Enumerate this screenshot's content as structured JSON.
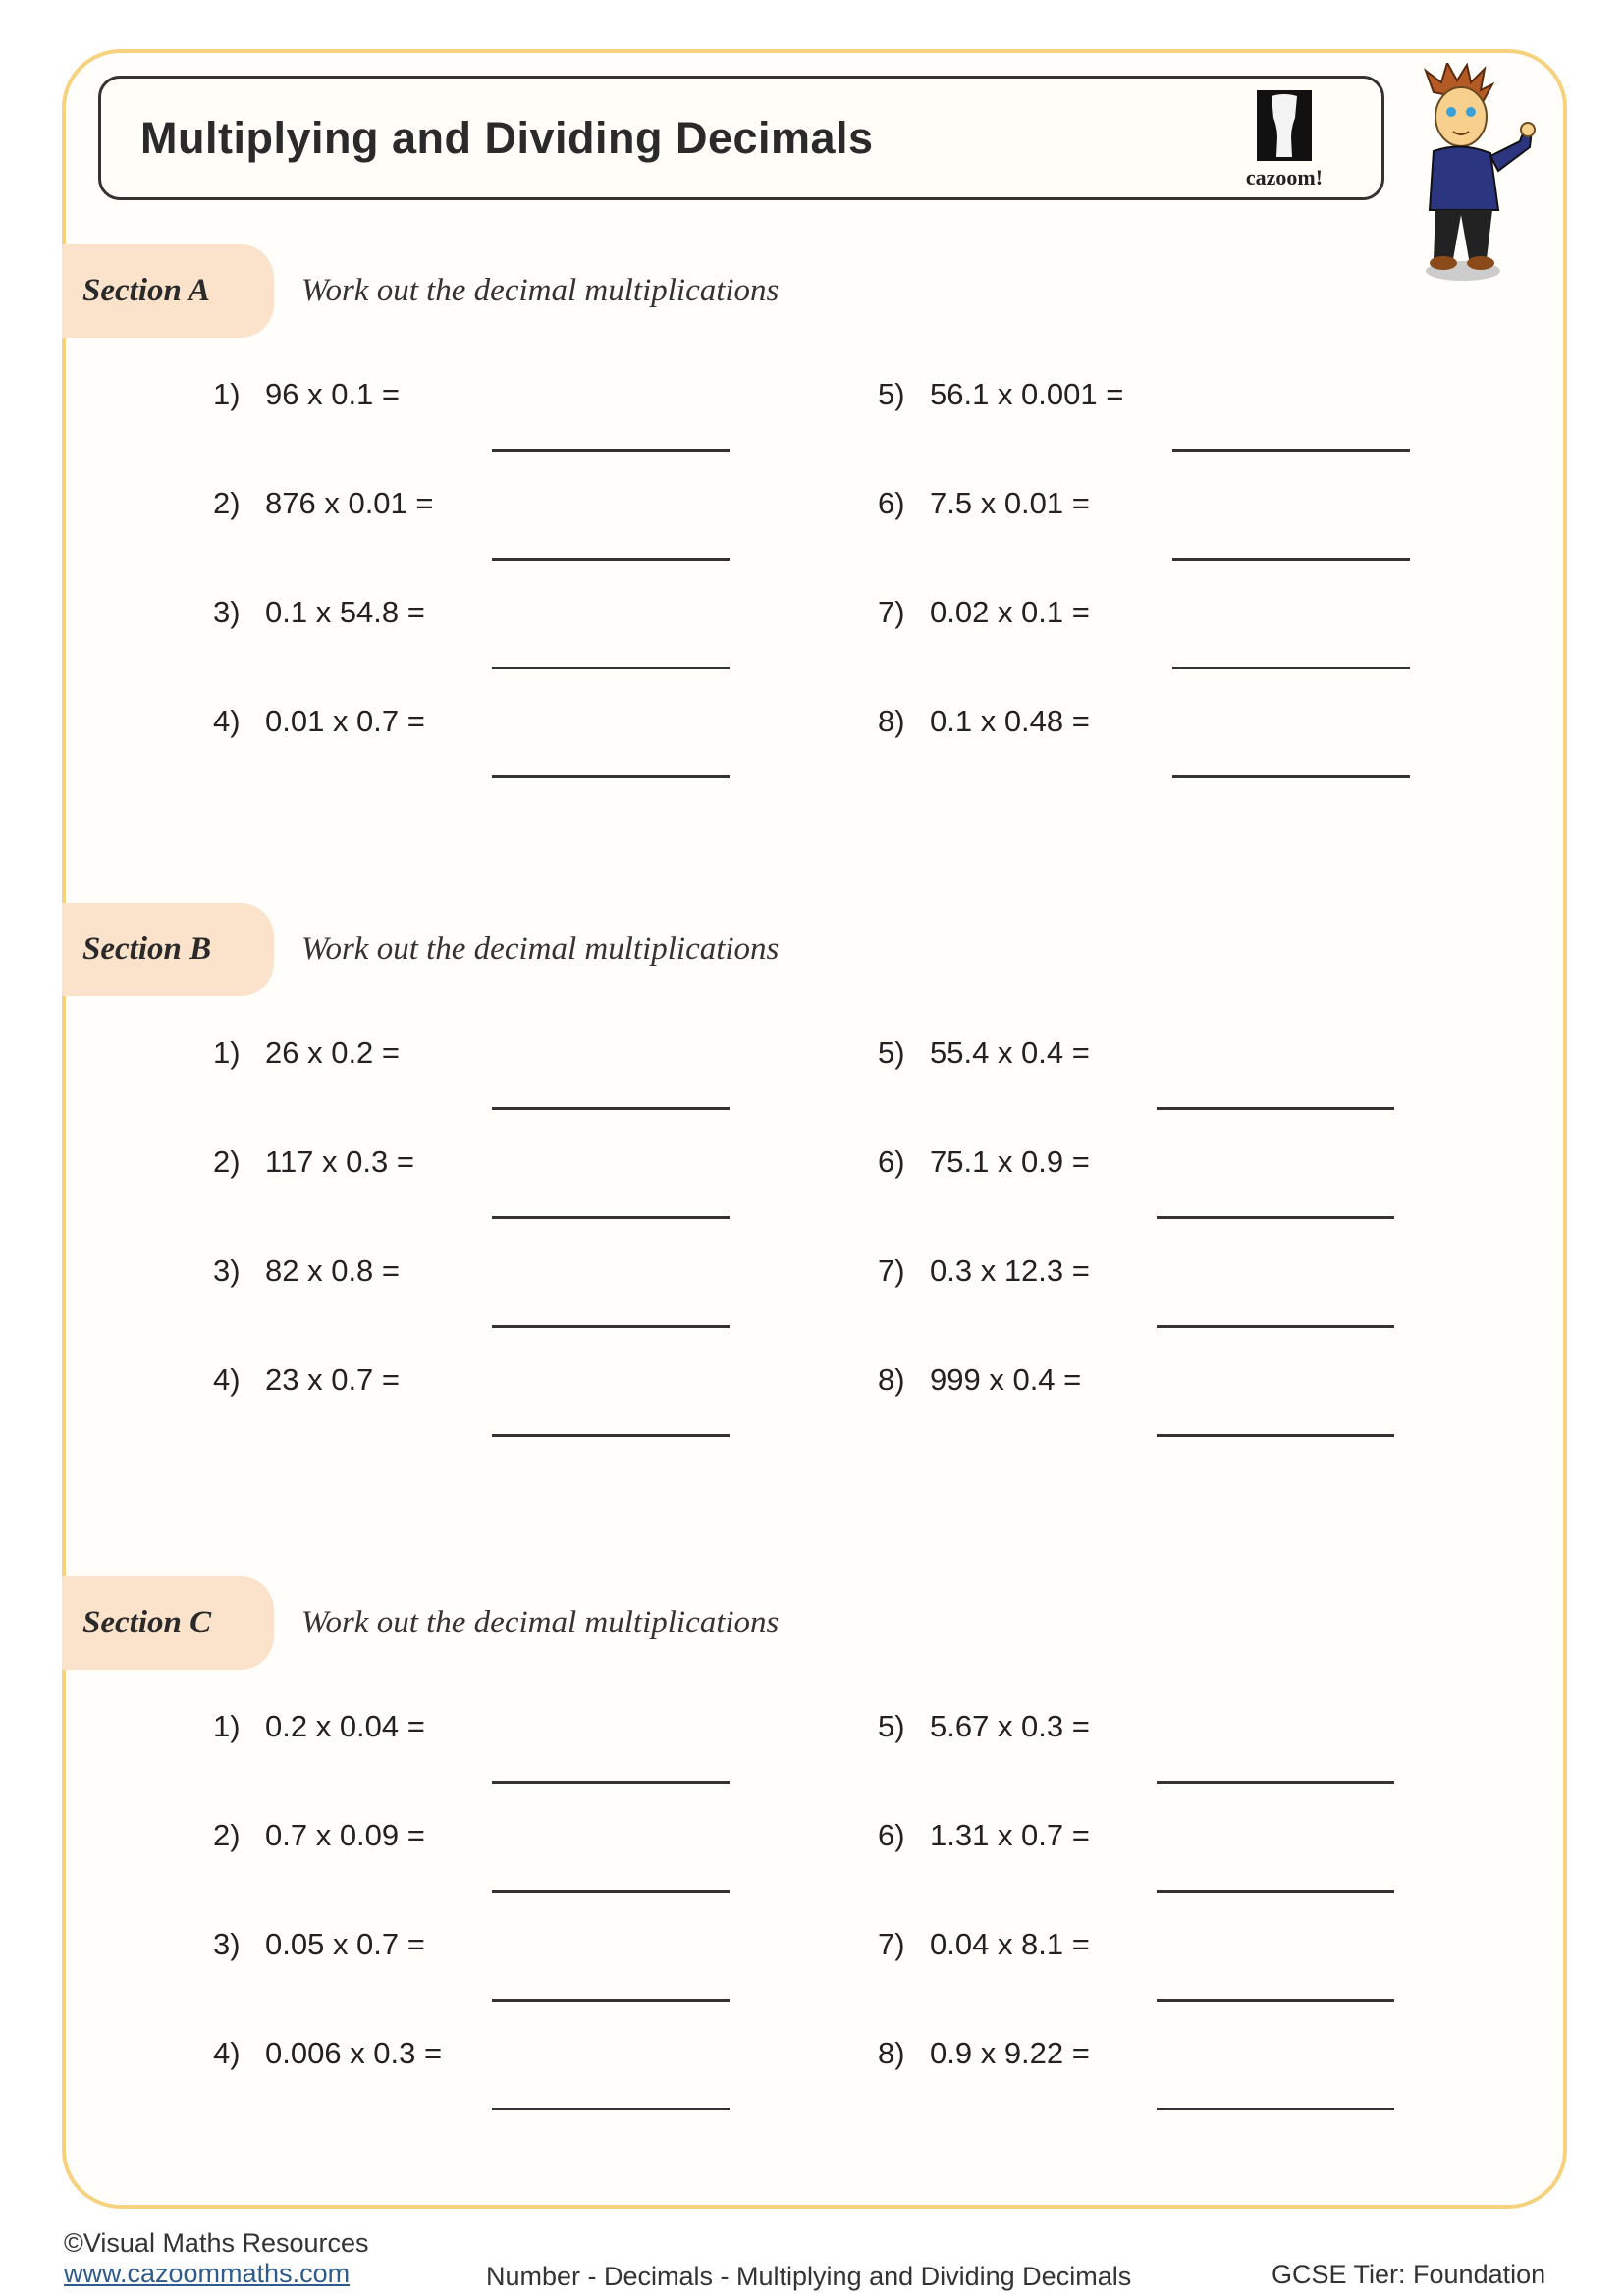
{
  "header": {
    "title": "Multiplying and Dividing Decimals",
    "logo_text": "cazoom!"
  },
  "colors": {
    "frame": "#f6d27e",
    "section_tab": "#fbe2cb"
  },
  "sections": [
    {
      "label": "Section A",
      "instruction": "Work out the decimal multiplications",
      "questions": [
        {
          "num": "1)",
          "expr": "96 x 0.1 ="
        },
        {
          "num": "2)",
          "expr": "876 x 0.01 ="
        },
        {
          "num": "3)",
          "expr": "0.1 x 54.8 ="
        },
        {
          "num": "4)",
          "expr": "0.01 x 0.7 ="
        },
        {
          "num": "5)",
          "expr": "56.1 x 0.001 ="
        },
        {
          "num": "6)",
          "expr": "7.5 x 0.01 ="
        },
        {
          "num": "7)",
          "expr": "0.02 x 0.1 ="
        },
        {
          "num": "8)",
          "expr": "0.1 x 0.48 ="
        }
      ]
    },
    {
      "label": "Section B",
      "instruction": "Work out the decimal multiplications",
      "questions": [
        {
          "num": "1)",
          "expr": "26 x 0.2 ="
        },
        {
          "num": "2)",
          "expr": "117 x 0.3 ="
        },
        {
          "num": "3)",
          "expr": "82 x 0.8 ="
        },
        {
          "num": "4)",
          "expr": "23 x 0.7 ="
        },
        {
          "num": "5)",
          "expr": "55.4 x 0.4 ="
        },
        {
          "num": "6)",
          "expr": "75.1 x 0.9 ="
        },
        {
          "num": "7)",
          "expr": "0.3 x 12.3 ="
        },
        {
          "num": "8)",
          "expr": "999 x 0.4 ="
        }
      ]
    },
    {
      "label": "Section C",
      "instruction": "Work out the decimal multiplications",
      "questions": [
        {
          "num": "1)",
          "expr": "0.2 x 0.04 ="
        },
        {
          "num": "2)",
          "expr": "0.7 x 0.09 ="
        },
        {
          "num": "3)",
          "expr": "0.05 x 0.7 ="
        },
        {
          "num": "4)",
          "expr": "0.006 x 0.3 ="
        },
        {
          "num": "5)",
          "expr": "5.67 x 0.3 ="
        },
        {
          "num": "6)",
          "expr": "1.31 x 0.7 ="
        },
        {
          "num": "7)",
          "expr": "0.04 x 8.1 ="
        },
        {
          "num": "8)",
          "expr": "0.9 x 9.22 ="
        }
      ]
    }
  ],
  "footer": {
    "copyright": "©Visual Maths Resources",
    "website": "www.cazoommaths.com",
    "topic": "Number - Decimals - Multiplying and Dividing Decimals",
    "tier": "GCSE Tier: Foundation"
  }
}
